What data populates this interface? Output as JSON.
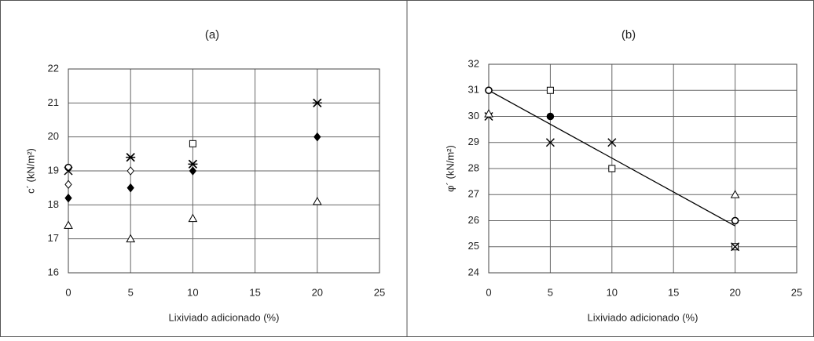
{
  "chart_data": [
    {
      "type": "scatter",
      "title": "(a)",
      "x_label": "Lixiviado adicionado (%)",
      "y_label": "c´ (kN/m²)",
      "xlim": [
        0,
        25
      ],
      "ylim": [
        16,
        22
      ],
      "xticks": [
        0,
        5,
        10,
        15,
        20,
        25
      ],
      "yticks": [
        16,
        17,
        18,
        19,
        20,
        21,
        22
      ],
      "grid": true,
      "series": [
        {
          "marker": "triangle",
          "color": "#000000",
          "x": [
            0,
            5,
            10,
            20
          ],
          "values": [
            17.4,
            17.0,
            17.6,
            18.1
          ]
        },
        {
          "marker": "filled-diamond",
          "color": "#000000",
          "x": [
            0,
            5,
            10,
            20
          ],
          "values": [
            18.2,
            18.5,
            19.0,
            20.0
          ]
        },
        {
          "marker": "diamond",
          "color": "#000000",
          "x": [
            0,
            5
          ],
          "values": [
            18.6,
            19.0
          ]
        },
        {
          "marker": "circle",
          "color": "#000000",
          "x": [
            0
          ],
          "values": [
            19.1
          ]
        },
        {
          "marker": "square",
          "color": "#000000",
          "x": [
            10
          ],
          "values": [
            19.8
          ]
        },
        {
          "marker": "cross",
          "color": "#000000",
          "x": [
            0,
            5,
            10,
            20
          ],
          "values": [
            19.0,
            19.4,
            19.2,
            21.0
          ]
        },
        {
          "marker": "asterisk",
          "color": "#000000",
          "x": [
            5,
            10,
            20
          ],
          "values": [
            19.4,
            19.2,
            21.0
          ]
        }
      ]
    },
    {
      "type": "scatter",
      "title": "(b)",
      "x_label": "Lixiviado adicionado (%)",
      "y_label": "φ´ (kN/m²)",
      "xlim": [
        0,
        25
      ],
      "ylim": [
        24,
        32
      ],
      "xticks": [
        0,
        5,
        10,
        15,
        20,
        25
      ],
      "yticks": [
        24,
        25,
        26,
        27,
        28,
        29,
        30,
        31,
        32
      ],
      "grid": true,
      "series": [
        {
          "marker": "filled-circle",
          "color": "#000000",
          "x": [
            0,
            5,
            20
          ],
          "values": [
            31,
            30,
            26
          ]
        },
        {
          "marker": "square",
          "color": "#000000",
          "x": [
            5,
            10,
            20
          ],
          "values": [
            31,
            28,
            25
          ]
        },
        {
          "marker": "cross",
          "color": "#000000",
          "x": [
            0,
            5,
            10,
            20
          ],
          "values": [
            30,
            29,
            29,
            25
          ]
        },
        {
          "marker": "triangle",
          "color": "#000000",
          "x": [
            0,
            20
          ],
          "values": [
            30.1,
            27
          ]
        },
        {
          "marker": "circle",
          "color": "#000000",
          "x": [
            0,
            20
          ],
          "values": [
            31,
            26
          ]
        }
      ],
      "trendline": {
        "color": "#000000",
        "x": [
          0,
          20
        ],
        "values": [
          31,
          25.8
        ]
      }
    }
  ]
}
